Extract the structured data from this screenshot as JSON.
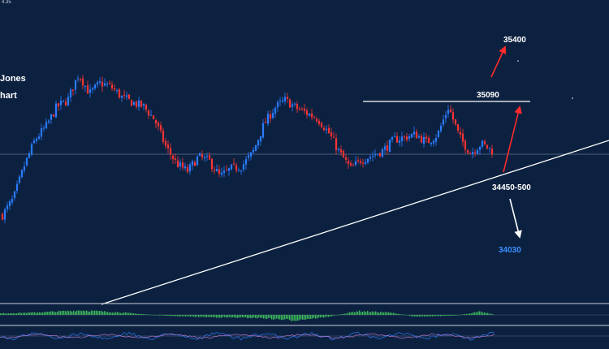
{
  "header": {
    "corner_text": "4.35"
  },
  "title_lines": [
    "Jones",
    "hart"
  ],
  "chart_data": {
    "type": "candlestick",
    "title": "",
    "series": [
      {
        "name": "",
        "values": [
          34230,
          34350,
          34600,
          34800,
          34900,
          35050,
          35100,
          35300,
          35150,
          35230,
          35200,
          35120,
          35080,
          35050,
          34950,
          34750,
          34620,
          34560,
          34670,
          34640,
          34520,
          34580,
          34600,
          34700,
          34910,
          35040,
          35100,
          35040,
          35000,
          34960,
          34850,
          34700,
          34580,
          34650,
          34680,
          34720,
          34800,
          34820,
          34840,
          34780,
          34840,
          35050,
          34820,
          34700,
          34770,
          34720
        ]
      }
    ],
    "levels": [
      {
        "label": "35400",
        "value": 35400,
        "color": "#ffffff"
      },
      {
        "label": "35090",
        "value": 35090,
        "color": "#ffffff"
      },
      {
        "label": "34450-500",
        "value": 34475,
        "color": "#ffffff"
      },
      {
        "label": "34030",
        "value": 34030,
        "color": "#3a8fff"
      }
    ],
    "resistance_line": 35090,
    "trendline": "rising support",
    "indicators": [
      "histogram oscillator",
      "line oscillator"
    ],
    "colors": {
      "background": "#0c2140",
      "up": "#2b7cff",
      "down": "#ff3333",
      "trendline": "#ffffff",
      "arrow_up": "#ff2a2a",
      "arrow_down": "#ffffff",
      "histogram": "#3cb55a"
    }
  }
}
